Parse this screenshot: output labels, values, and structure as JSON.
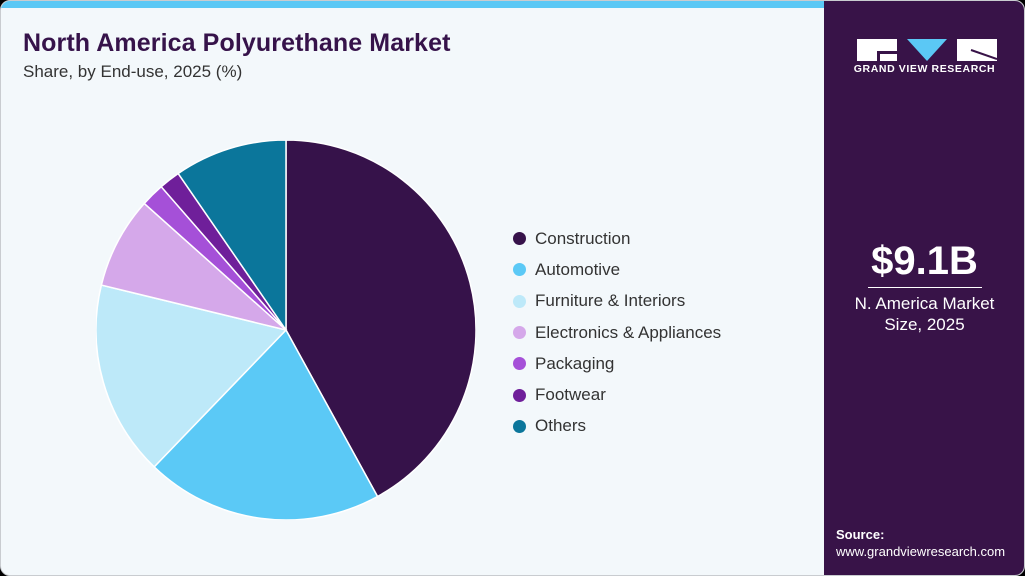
{
  "header": {
    "title": "North America Polyurethane Market",
    "subtitle": "Share, by End-use, 2025 (%)"
  },
  "sidebar": {
    "logo_text": "GRAND VIEW RESEARCH",
    "market_size_value": "$9.1B",
    "market_size_label_line1": "N. America Market",
    "market_size_label_line2": "Size, 2025",
    "source_label": "Source:",
    "source_url": "www.grandviewresearch.com"
  },
  "colors": {
    "accent_bar": "#5bc8f5",
    "sidebar_bg": "#381348",
    "card_bg": "#f3f8fb"
  },
  "legend": [
    {
      "label": "Construction",
      "color": "#36124a"
    },
    {
      "label": "Automotive",
      "color": "#5bc9f6"
    },
    {
      "label": "Furniture & Interiors",
      "color": "#bde9f9"
    },
    {
      "label": "Electronics & Appliances",
      "color": "#d5a8ea"
    },
    {
      "label": "Packaging",
      "color": "#a550d8"
    },
    {
      "label": "Footwear",
      "color": "#6f1f9a"
    },
    {
      "label": "Others",
      "color": "#0b769b"
    }
  ],
  "chart_data": {
    "type": "pie",
    "title": "North America Polyurethane Market",
    "subtitle": "Share, by End-use, 2025 (%)",
    "categories": [
      "Construction",
      "Automotive",
      "Furniture & Interiors",
      "Electronics & Appliances",
      "Packaging",
      "Footwear",
      "Others"
    ],
    "values": [
      42.0,
      20.2,
      16.6,
      7.8,
      2.0,
      1.8,
      9.6
    ],
    "colors": [
      "#36124a",
      "#5bc9f6",
      "#bde9f9",
      "#d5a8ea",
      "#a550d8",
      "#6f1f9a",
      "#0b769b"
    ],
    "start_angle": "12 o'clock, clockwise",
    "legend_position": "right",
    "annotation": "$9.1B N. America Market Size, 2025"
  }
}
